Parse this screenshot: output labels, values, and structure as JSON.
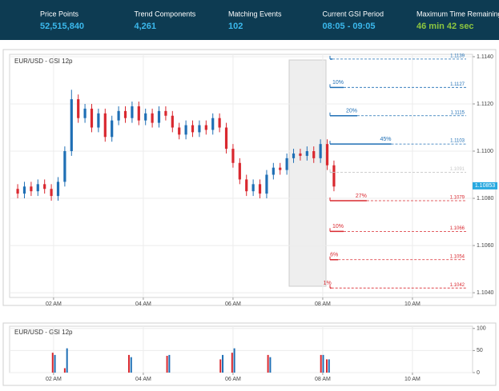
{
  "header": {
    "stats": [
      {
        "label": "Price Points",
        "value": "52,515,840",
        "color": "#3bb8ec"
      },
      {
        "label": "Trend Components",
        "value": "4,261",
        "color": "#3bb8ec"
      },
      {
        "label": "Matching Events",
        "value": "102",
        "color": "#3bb8ec"
      },
      {
        "label": "Current GSI Period",
        "value": "08:05 - 09:05",
        "color": "#3bb8ec"
      },
      {
        "label": "Maximum Time Remaining",
        "value": "46 min 42 sec",
        "color": "#8dc63f"
      }
    ]
  },
  "chart_data": [
    {
      "type": "candlestick",
      "title": "EUR/USD - GSI 12p",
      "up_color": "#1f6fb5",
      "down_color": "#d9282f",
      "grid": true,
      "x": [
        1.2,
        1.35,
        1.5,
        1.65,
        1.8,
        1.95,
        2.1,
        2.25,
        2.4,
        2.55,
        2.7,
        2.85,
        3,
        3.15,
        3.3,
        3.45,
        3.6,
        3.75,
        3.9,
        4.05,
        4.2,
        4.35,
        4.5,
        4.65,
        4.8,
        4.95,
        5.1,
        5.25,
        5.4,
        5.55,
        5.7,
        5.85,
        6,
        6.15,
        6.3,
        6.45,
        6.6,
        6.75,
        6.9,
        7.05,
        7.2,
        7.35,
        7.5,
        7.65,
        7.8,
        7.95,
        8.1,
        8.25
      ],
      "open": [
        1.1084,
        1.1082,
        1.1085,
        1.1083,
        1.1086,
        1.1084,
        1.1081,
        1.1087,
        1.11,
        1.1122,
        1.1114,
        1.1118,
        1.111,
        1.1116,
        1.1106,
        1.1113,
        1.1117,
        1.1114,
        1.1119,
        1.1113,
        1.1116,
        1.1112,
        1.1117,
        1.1115,
        1.111,
        1.1107,
        1.1111,
        1.1108,
        1.1111,
        1.1109,
        1.1114,
        1.111,
        1.1101,
        1.1095,
        1.1088,
        1.1083,
        1.1086,
        1.1082,
        1.109,
        1.1093,
        1.1092,
        1.1097,
        1.1099,
        1.1098,
        1.11,
        1.1097,
        1.1103,
        1.1094
      ],
      "high": [
        1.1086,
        1.1087,
        1.1087,
        1.1088,
        1.1088,
        1.1086,
        1.1089,
        1.1102,
        1.1126,
        1.1124,
        1.112,
        1.112,
        1.1118,
        1.1118,
        1.1115,
        1.1119,
        1.1119,
        1.1121,
        1.1121,
        1.1118,
        1.1118,
        1.1119,
        1.1119,
        1.1117,
        1.1112,
        1.1113,
        1.1113,
        1.1113,
        1.1113,
        1.1116,
        1.1116,
        1.1112,
        1.1103,
        1.1097,
        1.109,
        1.1088,
        1.1088,
        1.1092,
        1.1095,
        1.1095,
        1.1099,
        1.1101,
        1.1101,
        1.1102,
        1.1102,
        1.1105,
        1.1105,
        1.1096
      ],
      "low": [
        1.108,
        1.108,
        1.1081,
        1.1081,
        1.1082,
        1.1079,
        1.1079,
        1.1085,
        1.1098,
        1.1112,
        1.1112,
        1.1108,
        1.1108,
        1.1104,
        1.1104,
        1.1111,
        1.1112,
        1.1112,
        1.1111,
        1.1111,
        1.111,
        1.111,
        1.1113,
        1.1108,
        1.1105,
        1.1105,
        1.1106,
        1.1106,
        1.1107,
        1.1107,
        1.1108,
        1.1099,
        1.1093,
        1.1086,
        1.1081,
        1.1081,
        1.108,
        1.108,
        1.1088,
        1.109,
        1.109,
        1.1095,
        1.1096,
        1.1096,
        1.1095,
        1.1095,
        1.1092,
        1.1083
      ],
      "close": [
        1.1082,
        1.1085,
        1.1083,
        1.1086,
        1.1084,
        1.1081,
        1.1087,
        1.11,
        1.1122,
        1.1114,
        1.1118,
        1.111,
        1.1116,
        1.1106,
        1.1113,
        1.1117,
        1.1114,
        1.1119,
        1.1113,
        1.1116,
        1.1112,
        1.1117,
        1.1115,
        1.111,
        1.1107,
        1.1111,
        1.1108,
        1.1111,
        1.1109,
        1.1114,
        1.111,
        1.1101,
        1.1095,
        1.1088,
        1.1083,
        1.1086,
        1.1082,
        1.109,
        1.1093,
        1.1092,
        1.1097,
        1.1099,
        1.1098,
        1.11,
        1.1097,
        1.1103,
        1.1094,
        1.1085
      ],
      "xlim": [
        1.02,
        11.34
      ],
      "xticks": [
        {
          "value": 2,
          "label": "02 AM"
        },
        {
          "value": 4,
          "label": "04 AM"
        },
        {
          "value": 6,
          "label": "06 AM"
        },
        {
          "value": 8,
          "label": "08 AM"
        },
        {
          "value": 10,
          "label": "10 AM"
        }
      ],
      "ylim": [
        1.1038,
        1.1141
      ],
      "yticks": [
        {
          "value": 1.104,
          "label": "1.1040"
        },
        {
          "value": 1.106,
          "label": "1.1060"
        },
        {
          "value": 1.108,
          "label": "1.1080"
        },
        {
          "value": 1.11,
          "label": "1.1100"
        },
        {
          "value": 1.112,
          "label": "1.1120"
        },
        {
          "value": 1.114,
          "label": "1.1140"
        }
      ],
      "last_price": 1.10853,
      "last_price_color": "#29a9e0",
      "levels": [
        {
          "price": 1.1139,
          "percent": null,
          "percent_label": null,
          "color": "#1f6fb5"
        },
        {
          "price": 1.1127,
          "percent": 10,
          "percent_label": "10%",
          "color": "#1f6fb5"
        },
        {
          "price": 1.1115,
          "percent": 20,
          "percent_label": "20%",
          "color": "#1f6fb5"
        },
        {
          "price": 1.1103,
          "percent": 45,
          "percent_label": "45%",
          "color": "#1f6fb5"
        },
        {
          "price": 1.1091,
          "percent": null,
          "percent_label": null,
          "color": "#c8c8c8"
        },
        {
          "price": 1.1079,
          "percent": 27,
          "percent_label": "27%",
          "color": "#d9282f"
        },
        {
          "price": 1.1066,
          "percent": 10,
          "percent_label": "10%",
          "color": "#d9282f"
        },
        {
          "price": 1.1054,
          "percent": 6,
          "percent_label": "6%",
          "color": "#d9282f"
        },
        {
          "price": 1.1042,
          "percent": 1,
          "percent_label": "1%",
          "color": "#d9282f"
        }
      ]
    },
    {
      "type": "bar",
      "title": "EUR/USD - GSI 12p",
      "grid": true,
      "series": [
        {
          "color": "#d9282f",
          "x": [
            1.98,
            2.25,
            3.68,
            4.53,
            5.72,
            5.98,
            6.78,
            7.96,
            8.09
          ],
          "values": [
            45,
            10,
            40,
            38,
            30,
            45,
            40,
            40,
            30
          ]
        },
        {
          "color": "#1f6fb5",
          "x": [
            2.03,
            2.3,
            3.73,
            4.58,
            5.77,
            6.03,
            6.83,
            8.01,
            8.14
          ],
          "values": [
            40,
            55,
            35,
            40,
            40,
            55,
            35,
            40,
            30
          ]
        }
      ],
      "xlim": [
        1.02,
        11.34
      ],
      "xticks": [
        {
          "value": 2,
          "label": "02 AM"
        },
        {
          "value": 4,
          "label": "04 AM"
        },
        {
          "value": 6,
          "label": "06 AM"
        },
        {
          "value": 8,
          "label": "08 AM"
        },
        {
          "value": 10,
          "label": "10 AM"
        }
      ],
      "ylim": [
        0,
        105
      ],
      "yticks": [
        0,
        50,
        100
      ]
    }
  ]
}
